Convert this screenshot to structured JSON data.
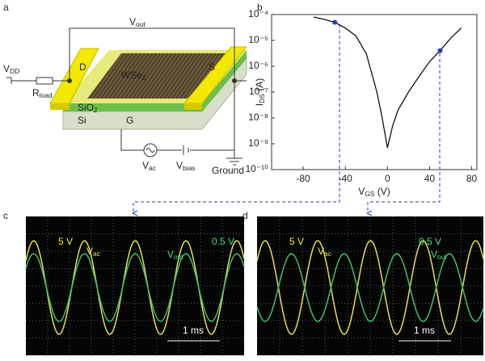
{
  "panel_labels": [
    "a",
    "b",
    "c",
    "d"
  ],
  "diagram": {
    "vdd": {
      "main": "V",
      "sub": "DD"
    },
    "rload": {
      "main": "R",
      "sub": "load"
    },
    "vout": {
      "main": "V",
      "sub": "out"
    },
    "drain": "D",
    "source": "S",
    "gate": "G",
    "channel": {
      "main": "WSe",
      "sub": "2"
    },
    "oxide": {
      "main": "SiO",
      "sub": "2"
    },
    "substrate": "Si",
    "vac": {
      "main": "V",
      "sub": "ac"
    },
    "vbias": {
      "main": "V",
      "sub": "bias"
    },
    "ground": "Ground"
  },
  "chart_data": {
    "type": "line",
    "xlabel": {
      "main": "V",
      "sub": "GS",
      "unit": " (V)"
    },
    "ylabel": {
      "main": "I",
      "sub": "DS",
      "unit": " (A)"
    },
    "x": [
      -70,
      -60,
      -50,
      -40,
      -30,
      -20,
      -10,
      -5,
      0,
      5,
      10,
      20,
      30,
      40,
      50,
      60,
      70
    ],
    "series": [
      {
        "color": "#111111",
        "values": [
          8e-05,
          6.5e-05,
          5e-05,
          3e-05,
          1.5e-05,
          3e-06,
          1e-07,
          1e-08,
          7e-10,
          5e-09,
          2e-08,
          1e-07,
          4e-07,
          1.5e-06,
          4e-06,
          1.2e-05,
          3e-05
        ]
      }
    ],
    "markers": {
      "color": "#2b3fa8",
      "x": [
        -50,
        50
      ],
      "values": [
        5e-05,
        4e-06
      ]
    },
    "xlim": [
      -110,
      85
    ],
    "ylim": [
      1e-10,
      0.0001
    ],
    "log_y": true,
    "xticks": [
      -80,
      -40,
      0,
      40,
      80
    ],
    "yticks": [
      {
        "value": 1e-10,
        "label": "10⁻¹⁰"
      },
      {
        "value": 1e-09,
        "label": "10⁻⁹"
      },
      {
        "value": 1e-08,
        "label": "10⁻⁸"
      },
      {
        "value": 1e-07,
        "label": "10⁻⁷"
      },
      {
        "value": 1e-06,
        "label": "10⁻⁶"
      },
      {
        "value": 1e-05,
        "label": "10⁻⁵"
      },
      {
        "value": 0.0001,
        "label": "10⁻⁴"
      }
    ]
  },
  "scope_c": {
    "yellow_scale": "5 V",
    "yellow_name": {
      "main": "V",
      "sub": "ac"
    },
    "green_scale": "0.5 V",
    "green_name": {
      "main": "V",
      "sub": "out"
    },
    "time_scale": "1 ms"
  },
  "scope_d": {
    "yellow_scale": "5 V",
    "yellow_name": {
      "main": "V",
      "sub": "ac"
    },
    "green_scale": "0.5 V",
    "green_name": {
      "main": "V",
      "sub": "out"
    },
    "time_scale": "1 ms"
  }
}
